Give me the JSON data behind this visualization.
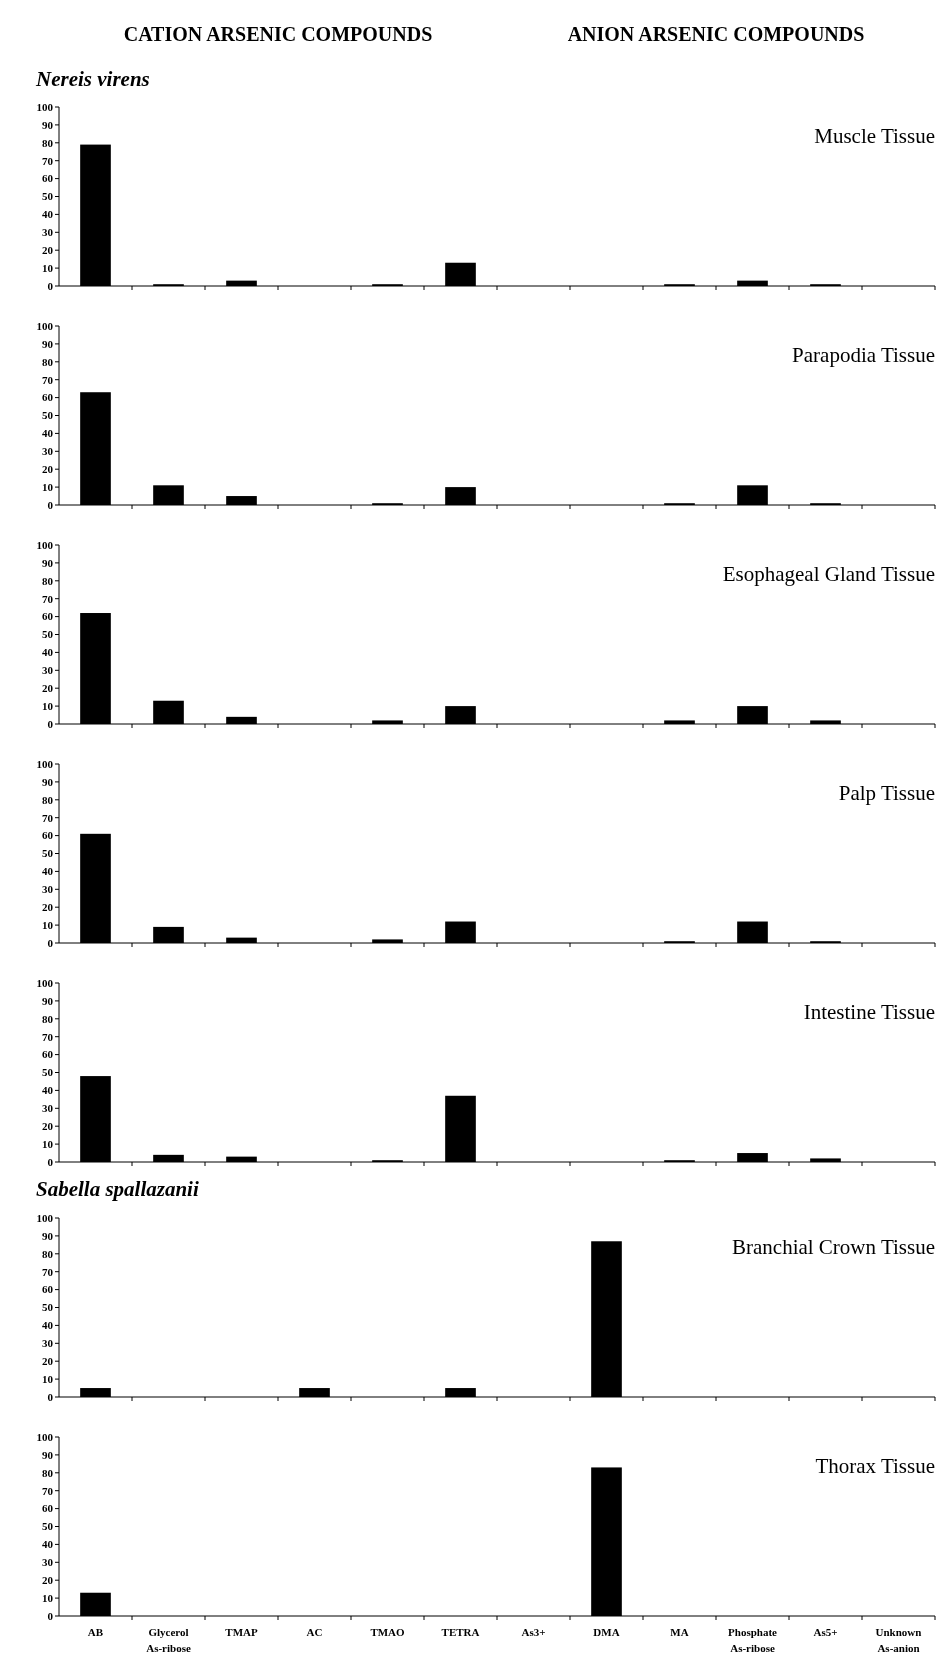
{
  "chart_data": [
    {
      "type": "bar",
      "title": "Nereis virens",
      "subtitle": "Muscle Tissue",
      "annotations": [
        "CATION ARSENIC COMPOUNDS",
        "ANION ARSENIC COMPOUNDS"
      ],
      "categories": [
        null,
        null,
        null,
        null,
        null,
        null,
        null,
        null,
        null,
        null,
        null,
        null
      ],
      "values": [
        79,
        1,
        3,
        0,
        1,
        13,
        0,
        0,
        1,
        3,
        1,
        0
      ],
      "color": "#000000",
      "ylim": [
        0,
        100
      ],
      "yticks": [
        0,
        10,
        20,
        30,
        40,
        50,
        60,
        70,
        80,
        90,
        100
      ],
      "tick_labels": "y"
    },
    {
      "type": "bar",
      "subtitle": "Parapodia Tissue",
      "categories": [
        null,
        null,
        null,
        null,
        null,
        null,
        null,
        null,
        null,
        null,
        null,
        null
      ],
      "values": [
        63,
        11,
        5,
        0,
        1,
        10,
        0,
        0,
        1,
        11,
        1,
        0
      ],
      "color": "#000000",
      "ylim": [
        0,
        100
      ],
      "yticks": [
        0,
        10,
        20,
        30,
        40,
        50,
        60,
        70,
        80,
        90,
        100
      ],
      "tick_labels": "y"
    },
    {
      "type": "bar",
      "subtitle": "Esophageal Gland Tissue",
      "categories": [
        null,
        null,
        null,
        null,
        null,
        null,
        null,
        null,
        null,
        null,
        null,
        null
      ],
      "values": [
        62,
        13,
        4,
        0,
        2,
        10,
        0,
        0,
        2,
        10,
        2,
        0
      ],
      "color": "#000000",
      "ylim": [
        0,
        100
      ],
      "yticks": [
        0,
        10,
        20,
        30,
        40,
        50,
        60,
        70,
        80,
        90,
        100
      ],
      "tick_labels": "y"
    },
    {
      "type": "bar",
      "subtitle": "Palp Tissue",
      "categories": [
        null,
        null,
        null,
        null,
        null,
        null,
        null,
        null,
        null,
        null,
        null,
        null
      ],
      "values": [
        61,
        9,
        3,
        0,
        2,
        12,
        0,
        0,
        1,
        12,
        1,
        0
      ],
      "color": "#000000",
      "ylim": [
        0,
        100
      ],
      "yticks": [
        0,
        10,
        20,
        30,
        40,
        50,
        60,
        70,
        80,
        90,
        100
      ],
      "tick_labels": "y"
    },
    {
      "type": "bar",
      "subtitle": "Intestine Tissue",
      "categories": [
        null,
        null,
        null,
        null,
        null,
        null,
        null,
        null,
        null,
        null,
        null,
        null
      ],
      "values": [
        48,
        4,
        3,
        0,
        1,
        37,
        0,
        0,
        1,
        5,
        2,
        0
      ],
      "color": "#000000",
      "ylim": [
        0,
        100
      ],
      "yticks": [
        0,
        10,
        20,
        30,
        40,
        50,
        60,
        70,
        80,
        90,
        100
      ],
      "tick_labels": "y"
    },
    {
      "type": "bar",
      "title": "Sabella spallazanii",
      "subtitle": "Branchial Crown Tissue",
      "categories": [
        null,
        null,
        null,
        null,
        null,
        null,
        null,
        null,
        null,
        null,
        null,
        null
      ],
      "values": [
        5,
        0,
        0,
        5,
        0,
        5,
        0,
        87,
        0,
        0,
        0,
        0
      ],
      "color": "#000000",
      "ylim": [
        0,
        100
      ],
      "yticks": [
        0,
        10,
        20,
        30,
        40,
        50,
        60,
        70,
        80,
        90,
        100
      ],
      "tick_labels": "y"
    },
    {
      "type": "bar",
      "subtitle": "Thorax Tissue",
      "categories": [
        "AB",
        "Glycerol As-ribose",
        "TMAP",
        "AC",
        "TMAO",
        "TETRA",
        "As3+",
        "DMA",
        "MA",
        "Phosphate As-ribose",
        "As5+",
        "Unknown As-anion"
      ],
      "values": [
        13,
        0,
        0,
        0,
        0,
        0,
        0,
        83,
        0,
        0,
        0,
        0
      ],
      "color": "#000000",
      "ylim": [
        0,
        100
      ],
      "yticks": [
        0,
        10,
        20,
        30,
        40,
        50,
        60,
        70,
        80,
        90,
        100
      ]
    }
  ]
}
